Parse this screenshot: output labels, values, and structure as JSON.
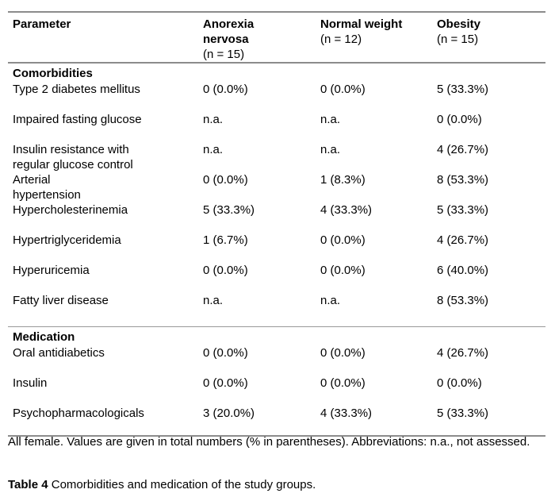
{
  "header": {
    "columns": [
      {
        "title": "Parameter",
        "sub": ""
      },
      {
        "title": "Anorexia\nnervosa",
        "sub": "(n = 15)"
      },
      {
        "title": "Normal weight",
        "sub": "(n = 12)"
      },
      {
        "title": "Obesity",
        "sub": "(n = 15)"
      }
    ]
  },
  "sections": [
    {
      "label": "Comorbidities",
      "rows": [
        {
          "parameter": "Type 2 diabetes mellitus",
          "values": [
            "0 (0.0%)",
            "0 (0.0%)",
            "5 (33.3%)"
          ]
        },
        {
          "parameter": "Impaired fasting glucose",
          "values": [
            "n.a.",
            "n.a.",
            "0 (0.0%)"
          ]
        },
        {
          "parameter": "Insulin resistance with\nregular glucose control",
          "values": [
            "n.a.",
            "n.a.",
            "4 (26.7%)"
          ]
        },
        {
          "parameter": "Arterial\nhypertension",
          "values": [
            "0 (0.0%)",
            "1 (8.3%)",
            "8 (53.3%)"
          ]
        },
        {
          "parameter": "Hypercholesterinemia",
          "values": [
            "5 (33.3%)",
            "4 (33.3%)",
            "5 (33.3%)"
          ]
        },
        {
          "parameter": "Hypertriglyceridemia",
          "values": [
            "1 (6.7%)",
            "0 (0.0%)",
            "4 (26.7%)"
          ]
        },
        {
          "parameter": "Hyperuricemia",
          "values": [
            "0 (0.0%)",
            "0 (0.0%)",
            "6 (40.0%)"
          ]
        },
        {
          "parameter": "Fatty liver disease",
          "values": [
            "n.a.",
            "n.a.",
            "8 (53.3%)"
          ]
        }
      ]
    },
    {
      "label": "Medication",
      "rows": [
        {
          "parameter": "Oral antidiabetics",
          "values": [
            "0 (0.0%)",
            "0 (0.0%)",
            "4 (26.7%)"
          ]
        },
        {
          "parameter": "Insulin",
          "values": [
            "0 (0.0%)",
            "0 (0.0%)",
            "0 (0.0%)"
          ]
        },
        {
          "parameter": "Psychopharmacologicals",
          "values": [
            "3 (20.0%)",
            "4 (33.3%)",
            "5 (33.3%)"
          ]
        }
      ]
    }
  ],
  "footnote": "All female. Values are given in total numbers (% in parentheses). Abbreviations: n.a., not assessed.",
  "caption": {
    "label": "Table 4",
    "text": "Comorbidities and medication of the study groups."
  },
  "colors": {
    "border_strong": "#8c8c8c",
    "border_thin": "#9a9a9a",
    "text": "#000000",
    "background": "#ffffff"
  }
}
